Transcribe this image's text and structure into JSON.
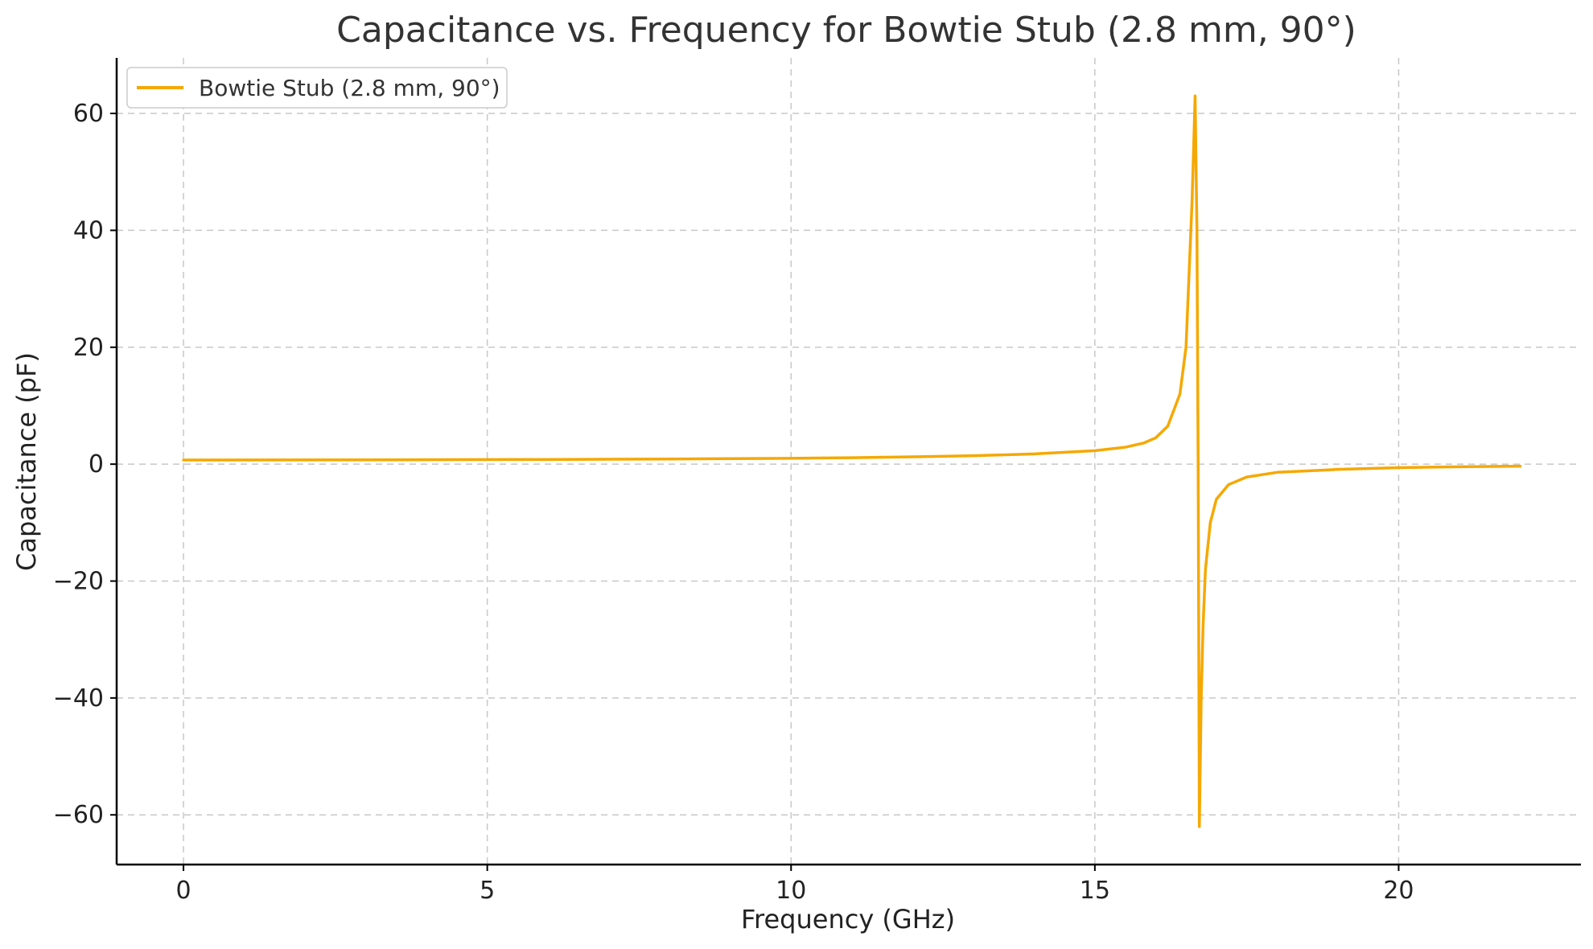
{
  "chart_data": {
    "type": "line",
    "title": "Capacitance vs. Frequency for Bowtie Stub (2.8 mm, 90°)",
    "xlabel": "Frequency (GHz)",
    "ylabel": "Capacitance (pF)",
    "xlim": [
      -1.1,
      23.0
    ],
    "ylim": [
      -68.5,
      69.5
    ],
    "xticks": [
      0,
      5,
      10,
      15,
      20
    ],
    "xtick_labels": [
      "0",
      "5",
      "10",
      "15",
      "20"
    ],
    "yticks": [
      -60,
      -40,
      -20,
      0,
      20,
      40,
      60
    ],
    "ytick_labels": [
      "−60",
      "−40",
      "−20",
      "0",
      "20",
      "40",
      "60"
    ],
    "grid": true,
    "legend_position": "top-left",
    "series": [
      {
        "name": "Bowtie Stub (2.8 mm, 90°)",
        "color": "#f5a800",
        "x": [
          0,
          2,
          4,
          6,
          8,
          10,
          11,
          12,
          13,
          14,
          15,
          15.5,
          15.8,
          16.0,
          16.2,
          16.4,
          16.5,
          16.6,
          16.65,
          16.68,
          16.7,
          16.72,
          16.75,
          16.78,
          16.82,
          16.9,
          17.0,
          17.2,
          17.5,
          18,
          19,
          20,
          21,
          22
        ],
        "y": [
          0.7,
          0.72,
          0.75,
          0.8,
          0.88,
          1.0,
          1.1,
          1.25,
          1.45,
          1.75,
          2.3,
          2.9,
          3.6,
          4.5,
          6.5,
          12,
          20,
          45,
          63,
          40,
          0,
          -62,
          -40,
          -28,
          -18,
          -10,
          -6,
          -3.5,
          -2.2,
          -1.4,
          -0.9,
          -0.6,
          -0.45,
          -0.35
        ]
      }
    ]
  }
}
